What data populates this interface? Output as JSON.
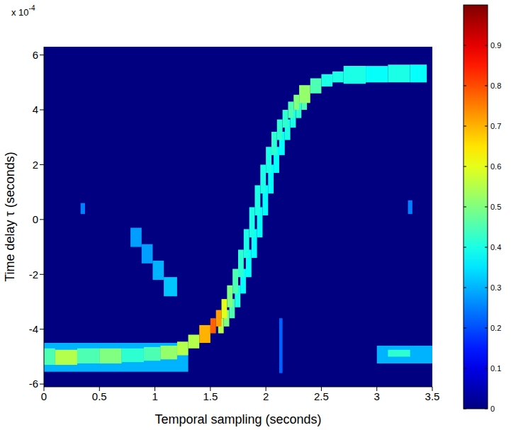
{
  "chart_data": {
    "type": "heatmap",
    "x_label": "Temporal sampling (seconds)",
    "y_label": "Time delay τ (seconds)",
    "y_offset_text": {
      "base": "x 10",
      "exponent": "-4"
    },
    "xlim": [
      0,
      3.5
    ],
    "xticks": [
      0,
      0.5,
      1,
      1.5,
      2,
      2.5,
      3,
      3.5
    ],
    "ylim": [
      -6.1,
      6.3
    ],
    "yticks": [
      -6,
      -4,
      -2,
      0,
      2,
      4,
      6
    ],
    "cells": [
      [
        0,
        1.3,
        -5.55,
        -4.5,
        0.3
      ],
      [
        0,
        0.1,
        -5.3,
        -4.7,
        0.45
      ],
      [
        0.1,
        0.3,
        -5.3,
        -4.75,
        0.55
      ],
      [
        0.3,
        0.5,
        -5.25,
        -4.7,
        0.45
      ],
      [
        0.5,
        0.7,
        -5.25,
        -4.7,
        0.5
      ],
      [
        0.7,
        0.9,
        -5.2,
        -4.7,
        0.42
      ],
      [
        0.9,
        1.05,
        -5.15,
        -4.65,
        0.45
      ],
      [
        1.05,
        1.2,
        -5.1,
        -4.6,
        0.52
      ],
      [
        1.2,
        1.3,
        -4.95,
        -4.45,
        0.55
      ],
      [
        0.78,
        0.88,
        -1.0,
        -0.3,
        0.28
      ],
      [
        0.88,
        0.98,
        -1.6,
        -0.9,
        0.28
      ],
      [
        0.98,
        1.08,
        -2.2,
        -1.5,
        0.3
      ],
      [
        1.08,
        1.2,
        -2.8,
        -2.1,
        0.32
      ],
      [
        0.33,
        0.37,
        0.2,
        0.6,
        0.25
      ],
      [
        3.28,
        3.32,
        0.2,
        0.7,
        0.25
      ],
      [
        2.12,
        2.15,
        -5.6,
        -3.6,
        0.22
      ],
      [
        3.0,
        3.5,
        -5.25,
        -4.6,
        0.3
      ],
      [
        3.1,
        3.3,
        -5.0,
        -4.75,
        0.42
      ],
      [
        1.57,
        1.62,
        -4.15,
        -3.6,
        0.55
      ],
      [
        1.62,
        1.67,
        -3.9,
        -3.3,
        0.5
      ],
      [
        1.67,
        1.72,
        -3.6,
        -2.9,
        0.45
      ],
      [
        1.72,
        1.77,
        -3.2,
        -2.4,
        0.4
      ],
      [
        1.77,
        1.82,
        -2.7,
        -1.8,
        0.38
      ],
      [
        1.82,
        1.87,
        -2.1,
        -1.1,
        0.38
      ],
      [
        1.87,
        1.92,
        -1.4,
        -0.35,
        0.38
      ],
      [
        1.92,
        1.97,
        -0.65,
        0.45,
        0.38
      ],
      [
        1.97,
        2.02,
        0.15,
        1.25,
        0.38
      ],
      [
        2.02,
        2.07,
        0.95,
        2.0,
        0.38
      ],
      [
        2.07,
        2.12,
        1.7,
        2.65,
        0.38
      ],
      [
        2.12,
        2.17,
        2.35,
        3.2,
        0.38
      ],
      [
        2.17,
        2.22,
        2.9,
        3.65,
        0.4
      ],
      [
        2.22,
        2.27,
        3.35,
        4.0,
        0.4
      ],
      [
        2.27,
        2.32,
        3.7,
        4.3,
        0.42
      ],
      [
        2.32,
        2.37,
        4.0,
        4.55,
        0.45
      ],
      [
        1.3,
        1.4,
        -4.7,
        -4.2,
        0.55
      ],
      [
        1.4,
        1.5,
        -4.5,
        -3.85,
        0.7
      ],
      [
        1.5,
        1.55,
        -4.15,
        -3.6,
        0.78
      ],
      [
        1.55,
        1.6,
        -3.9,
        -3.3,
        0.72
      ],
      [
        1.6,
        1.65,
        -3.6,
        -2.9,
        0.6
      ],
      [
        1.65,
        1.7,
        -3.2,
        -2.4,
        0.5
      ],
      [
        1.7,
        1.75,
        -2.7,
        -1.8,
        0.45
      ],
      [
        1.75,
        1.8,
        -2.1,
        -1.1,
        0.42
      ],
      [
        1.8,
        1.85,
        -1.4,
        -0.35,
        0.4
      ],
      [
        1.85,
        1.9,
        -0.65,
        0.45,
        0.4
      ],
      [
        1.9,
        1.95,
        0.15,
        1.25,
        0.4
      ],
      [
        1.95,
        2.0,
        0.95,
        2.0,
        0.4
      ],
      [
        2.0,
        2.05,
        1.7,
        2.65,
        0.4
      ],
      [
        2.05,
        2.1,
        2.35,
        3.2,
        0.42
      ],
      [
        2.1,
        2.15,
        2.9,
        3.65,
        0.42
      ],
      [
        2.15,
        2.2,
        3.35,
        4.0,
        0.42
      ],
      [
        2.2,
        2.25,
        3.7,
        4.3,
        0.45
      ],
      [
        2.25,
        2.3,
        4.0,
        4.55,
        0.5
      ],
      [
        2.3,
        2.4,
        4.25,
        4.9,
        0.52
      ],
      [
        2.4,
        2.5,
        4.6,
        5.15,
        0.45
      ],
      [
        2.5,
        2.6,
        4.85,
        5.3,
        0.4
      ],
      [
        2.6,
        2.7,
        5.0,
        5.4,
        0.4
      ],
      [
        2.7,
        2.9,
        4.95,
        5.6,
        0.4
      ],
      [
        2.9,
        3.1,
        5.0,
        5.6,
        0.38
      ],
      [
        3.1,
        3.3,
        5.0,
        5.65,
        0.4
      ],
      [
        3.3,
        3.45,
        5.0,
        5.65,
        0.38
      ]
    ],
    "colorbar": {
      "range": [
        0,
        1
      ],
      "ticks": [
        0,
        0.1,
        0.2,
        0.3,
        0.4,
        0.5,
        0.6,
        0.7,
        0.8,
        0.9
      ]
    }
  }
}
